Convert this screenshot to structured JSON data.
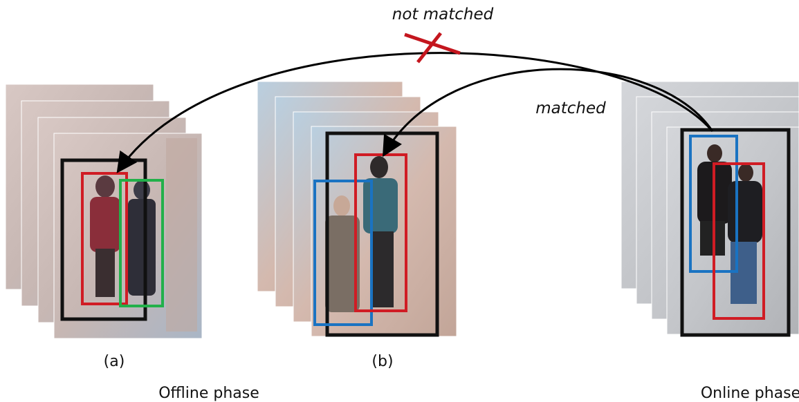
{
  "annotations": {
    "not_matched": "not matched",
    "matched": "matched"
  },
  "panels": [
    {
      "label": "(a)"
    },
    {
      "label": "(b)"
    }
  ],
  "phases": {
    "offline": "Offline phase",
    "online": "Online phase"
  }
}
